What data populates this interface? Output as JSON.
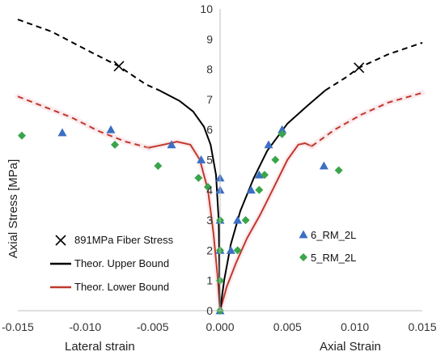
{
  "chart_data": {
    "type": "scatter",
    "xlabel_left": "Lateral strain",
    "xlabel_right": "Axial Strain",
    "ylabel": "Axial Stress [MPa]",
    "xlim": [
      -0.015,
      0.015
    ],
    "ylim": [
      0,
      10
    ],
    "x_ticks": [
      "-0.015",
      "-0.010",
      "-0.005",
      "0.000",
      "0.005",
      "0.010",
      "0.015"
    ],
    "x_tick_values": [
      -0.015,
      -0.01,
      -0.005,
      0.0,
      0.005,
      0.01,
      0.015
    ],
    "y_ticks": [
      "0",
      "1",
      "2",
      "3",
      "4",
      "5",
      "6",
      "7",
      "8",
      "9",
      "10"
    ],
    "grid": false,
    "colors": {
      "upper": "#000000",
      "lower": "#c0392b",
      "triangle": "#3a6fc4",
      "diamond": "#3aa54a"
    },
    "series": [
      {
        "name": "891MPa Fiber Stress",
        "kind": "x-marker",
        "points": [
          [
            -0.0075,
            8.1
          ],
          [
            0.0103,
            8.05
          ]
        ]
      },
      {
        "name": "Theor. Upper Bound",
        "kind": "line",
        "solid_left": [
          [
            -0.0045,
            7.3
          ],
          [
            -0.003,
            6.95
          ],
          [
            -0.002,
            6.6
          ],
          [
            -0.0012,
            6.1
          ],
          [
            -0.0007,
            5.5
          ],
          [
            -0.0003,
            4.5
          ],
          [
            -0.0001,
            3.0
          ],
          [
            0.0,
            0.0
          ]
        ],
        "solid_right": [
          [
            0.0,
            0.0
          ],
          [
            0.0003,
            1.0
          ],
          [
            0.0008,
            2.2
          ],
          [
            0.0015,
            3.3
          ],
          [
            0.0025,
            4.4
          ],
          [
            0.0035,
            5.3
          ],
          [
            0.005,
            6.2
          ],
          [
            0.0065,
            6.8
          ],
          [
            0.0078,
            7.3
          ]
        ],
        "dashed_left": [
          [
            -0.015,
            9.65
          ],
          [
            -0.0125,
            9.25
          ],
          [
            -0.0095,
            8.55
          ],
          [
            -0.0075,
            8.1
          ],
          [
            -0.0055,
            7.5
          ],
          [
            -0.0045,
            7.3
          ]
        ],
        "dashed_right": [
          [
            0.0078,
            7.3
          ],
          [
            0.0093,
            7.72
          ],
          [
            0.0103,
            8.05
          ],
          [
            0.0125,
            8.5
          ],
          [
            0.015,
            8.88
          ]
        ]
      },
      {
        "name": "Theor. Lower Bound",
        "kind": "line",
        "solid_left": [
          [
            -0.0053,
            5.4
          ],
          [
            -0.0042,
            5.5
          ],
          [
            -0.0032,
            5.6
          ],
          [
            -0.0022,
            5.5
          ],
          [
            -0.0015,
            5.0
          ],
          [
            -0.0009,
            4.0
          ],
          [
            -0.0005,
            2.6
          ],
          [
            -0.0002,
            1.2
          ],
          [
            0.0,
            0.0
          ]
        ],
        "solid_right": [
          [
            0.0,
            0.0
          ],
          [
            0.0005,
            0.8
          ],
          [
            0.0012,
            1.6
          ],
          [
            0.002,
            2.4
          ],
          [
            0.003,
            3.2
          ],
          [
            0.004,
            4.1
          ],
          [
            0.005,
            5.0
          ],
          [
            0.0058,
            5.5
          ],
          [
            0.0063,
            5.55
          ],
          [
            0.0068,
            5.45
          ]
        ],
        "dashed_left": [
          [
            -0.015,
            7.1
          ],
          [
            -0.013,
            6.75
          ],
          [
            -0.011,
            6.4
          ],
          [
            -0.009,
            5.95
          ],
          [
            -0.007,
            5.6
          ],
          [
            -0.0053,
            5.4
          ]
        ],
        "dashed_right": [
          [
            0.0068,
            5.45
          ],
          [
            0.0085,
            6.0
          ],
          [
            0.0105,
            6.5
          ],
          [
            0.0125,
            6.9
          ],
          [
            0.015,
            7.22
          ]
        ]
      },
      {
        "name": "6_RM_2L",
        "kind": "triangle",
        "points": [
          [
            -0.0117,
            5.9
          ],
          [
            -0.0081,
            6.0
          ],
          [
            -0.0036,
            5.5
          ],
          [
            -0.0014,
            5.0
          ],
          [
            0.0,
            4.4
          ],
          [
            0.0,
            4.0
          ],
          [
            0.0,
            3.0
          ],
          [
            0.0,
            2.0
          ],
          [
            0.0,
            0.0
          ],
          [
            0.0008,
            2.0
          ],
          [
            0.0013,
            3.0
          ],
          [
            0.0023,
            4.0
          ],
          [
            0.0029,
            4.5
          ],
          [
            0.0036,
            5.5
          ],
          [
            0.0046,
            6.0
          ],
          [
            0.0077,
            4.8
          ]
        ]
      },
      {
        "name": "5_RM_2L",
        "kind": "diamond",
        "points": [
          [
            -0.0147,
            5.8
          ],
          [
            -0.0078,
            5.5
          ],
          [
            -0.0046,
            4.8
          ],
          [
            -0.0016,
            4.4
          ],
          [
            -0.0009,
            4.1
          ],
          [
            0.0,
            3.0
          ],
          [
            0.0,
            2.0
          ],
          [
            0.0,
            1.0
          ],
          [
            0.0,
            0.0
          ],
          [
            0.0013,
            2.0
          ],
          [
            0.0019,
            3.0
          ],
          [
            0.0029,
            4.0
          ],
          [
            0.0033,
            4.5
          ],
          [
            0.0041,
            5.0
          ],
          [
            0.0046,
            5.85
          ],
          [
            0.0088,
            4.65
          ]
        ]
      }
    ],
    "legend": {
      "left": [
        {
          "label": "891MPa Fiber Stress",
          "kind": "x-marker"
        },
        {
          "label": "Theor. Upper Bound",
          "kind": "line-upper"
        },
        {
          "label": "Theor. Lower Bound",
          "kind": "line-lower"
        }
      ],
      "right": [
        {
          "label": "6_RM_2L",
          "kind": "triangle"
        },
        {
          "label": "5_RM_2L",
          "kind": "diamond"
        }
      ]
    }
  }
}
